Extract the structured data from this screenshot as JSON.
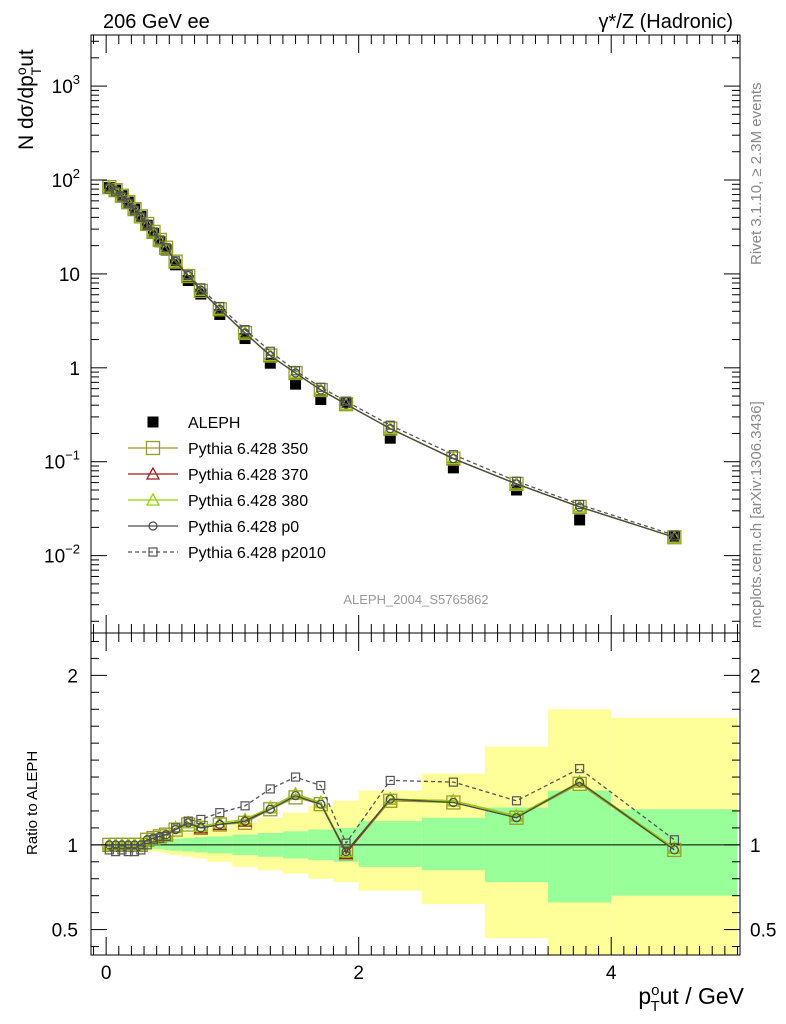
{
  "header": {
    "left_title": "206 GeV ee",
    "right_title": "γ*/Z (Hadronic)"
  },
  "side_text": {
    "rivet": "Rivet 3.1.10, ≥ 2.3M events",
    "mcplots": "mcplots.cern.ch [arXiv:1306.3436]"
  },
  "watermark": "ALEPH_2004_S5765862",
  "axes": {
    "main_ylabel": "N dσ/dp_T^out",
    "ratio_ylabel": "Ratio to ALEPH",
    "xlabel": "p_T^out / GeV",
    "main_yticks": [
      "10^-2",
      "10^-1",
      "1",
      "10",
      "10^2",
      "10^3"
    ],
    "ratio_yticks": [
      "0.5",
      "1",
      "2"
    ],
    "xticks": [
      "0",
      "2",
      "4"
    ]
  },
  "legend": [
    {
      "label": "ALEPH",
      "marker": "filled-square",
      "color": "#000000",
      "dashed": false
    },
    {
      "label": "Pythia 6.428 350",
      "marker": "open-square",
      "color": "#9a9a2a",
      "dashed": false
    },
    {
      "label": "Pythia 6.428 370",
      "marker": "open-triangle",
      "color": "#9a1b1b",
      "dashed": false
    },
    {
      "label": "Pythia 6.428 380",
      "marker": "open-triangle",
      "color": "#8fd400",
      "dashed": false
    },
    {
      "label": "Pythia 6.428 p0",
      "marker": "open-circle",
      "color": "#4a4a4a",
      "dashed": false
    },
    {
      "label": "Pythia 6.428 p2010",
      "marker": "open-square-small",
      "color": "#555555",
      "dashed": true
    }
  ],
  "chart_data": [
    {
      "type": "scatter",
      "panel": "main",
      "yscale": "log",
      "xlim": [
        -0.12,
        5.02
      ],
      "ylim": [
        0.0015,
        3500
      ],
      "x": [
        0.025,
        0.075,
        0.125,
        0.175,
        0.225,
        0.275,
        0.325,
        0.375,
        0.425,
        0.475,
        0.55,
        0.65,
        0.75,
        0.9,
        1.1,
        1.3,
        1.5,
        1.7,
        1.9,
        2.25,
        2.75,
        3.25,
        3.75,
        4.5
      ],
      "series": [
        {
          "name": "ALEPH",
          "values": [
            83,
            78,
            68,
            58,
            49,
            41,
            33,
            27,
            22,
            18,
            12.5,
            8.5,
            6.1,
            3.7,
            2.05,
            1.12,
            0.67,
            0.46,
            0.43,
            0.178,
            0.086,
            0.05,
            0.024,
            0.016
          ]
        },
        {
          "name": "Pythia 6.428 350",
          "values": [
            84,
            78,
            68,
            58,
            49,
            41,
            34,
            28,
            23,
            19,
            13.5,
            9.5,
            6.6,
            4.2,
            2.35,
            1.35,
            0.88,
            0.58,
            0.41,
            0.225,
            0.108,
            0.058,
            0.033,
            0.0157
          ]
        },
        {
          "name": "Pythia 6.428 370",
          "values": [
            84,
            78,
            68,
            58,
            49,
            41,
            34,
            28,
            23,
            19,
            13.5,
            9.6,
            6.7,
            4.2,
            2.35,
            1.35,
            0.88,
            0.58,
            0.41,
            0.225,
            0.108,
            0.058,
            0.033,
            0.0157
          ]
        },
        {
          "name": "Pythia 6.428 380",
          "values": [
            84,
            78,
            68,
            58,
            49,
            41,
            34,
            28,
            23,
            19,
            13.5,
            9.6,
            6.7,
            4.2,
            2.35,
            1.35,
            0.88,
            0.58,
            0.41,
            0.225,
            0.108,
            0.058,
            0.033,
            0.0157
          ]
        },
        {
          "name": "Pythia 6.428 p0",
          "values": [
            84,
            78,
            68,
            58,
            49,
            41,
            34,
            28,
            23,
            19,
            13.5,
            9.6,
            6.7,
            4.2,
            2.35,
            1.35,
            0.88,
            0.58,
            0.41,
            0.225,
            0.108,
            0.058,
            0.033,
            0.0157
          ]
        },
        {
          "name": "Pythia 6.428 p2010",
          "values": [
            80,
            75,
            66,
            56,
            47,
            40,
            33,
            28,
            23,
            19,
            13.8,
            9.8,
            7.1,
            4.5,
            2.55,
            1.5,
            0.93,
            0.62,
            0.44,
            0.245,
            0.119,
            0.062,
            0.035,
            0.0165
          ]
        }
      ]
    },
    {
      "type": "line",
      "panel": "ratio",
      "yscale": "linear",
      "xlim": [
        -0.12,
        5.02
      ],
      "ylim": [
        0.35,
        2.25
      ],
      "bands": {
        "edges": [
          0.0,
          0.05,
          0.1,
          0.15,
          0.2,
          0.25,
          0.3,
          0.35,
          0.4,
          0.45,
          0.5,
          0.6,
          0.7,
          0.8,
          1.0,
          1.2,
          1.4,
          1.6,
          1.8,
          2.0,
          2.5,
          3.0,
          3.5,
          4.0,
          5.0
        ],
        "green_lo": [
          0.99,
          0.99,
          0.99,
          0.985,
          0.985,
          0.98,
          0.98,
          0.975,
          0.975,
          0.97,
          0.965,
          0.96,
          0.955,
          0.95,
          0.94,
          0.93,
          0.92,
          0.91,
          0.9,
          0.87,
          0.85,
          0.78,
          0.66,
          0.7
        ],
        "green_hi": [
          1.01,
          1.01,
          1.01,
          1.015,
          1.015,
          1.02,
          1.02,
          1.025,
          1.025,
          1.03,
          1.035,
          1.04,
          1.045,
          1.05,
          1.06,
          1.07,
          1.08,
          1.09,
          1.1,
          1.14,
          1.16,
          1.22,
          1.32,
          1.21
        ],
        "yellow_lo": [
          0.99,
          0.99,
          0.985,
          0.98,
          0.975,
          0.97,
          0.965,
          0.96,
          0.955,
          0.95,
          0.94,
          0.93,
          0.92,
          0.9,
          0.87,
          0.85,
          0.83,
          0.8,
          0.78,
          0.73,
          0.65,
          0.45,
          0.27,
          0.32
        ],
        "yellow_hi": [
          1.01,
          1.01,
          1.015,
          1.02,
          1.025,
          1.03,
          1.035,
          1.04,
          1.045,
          1.05,
          1.06,
          1.07,
          1.08,
          1.1,
          1.13,
          1.16,
          1.19,
          1.23,
          1.26,
          1.32,
          1.42,
          1.58,
          1.8,
          1.75
        ]
      },
      "x": [
        0.025,
        0.075,
        0.125,
        0.175,
        0.225,
        0.275,
        0.325,
        0.375,
        0.425,
        0.475,
        0.55,
        0.65,
        0.75,
        0.9,
        1.1,
        1.3,
        1.5,
        1.7,
        1.9,
        2.25,
        2.75,
        3.25,
        3.75,
        4.5
      ],
      "series": [
        {
          "name": "Pythia 6.428 350",
          "values": [
            1.0,
            1.0,
            1.0,
            1.0,
            1.0,
            1.0,
            1.03,
            1.04,
            1.05,
            1.06,
            1.09,
            1.12,
            1.1,
            1.12,
            1.13,
            1.21,
            1.28,
            1.24,
            0.95,
            1.26,
            1.25,
            1.16,
            1.36,
            0.97
          ]
        },
        {
          "name": "Pythia 6.428 370",
          "values": [
            1.0,
            1.0,
            1.0,
            1.0,
            1.0,
            1.0,
            1.03,
            1.04,
            1.05,
            1.06,
            1.1,
            1.13,
            1.1,
            1.12,
            1.14,
            1.22,
            1.3,
            1.25,
            0.95,
            1.27,
            1.26,
            1.17,
            1.37,
            0.98
          ]
        },
        {
          "name": "Pythia 6.428 380",
          "values": [
            1.0,
            1.0,
            1.0,
            1.0,
            1.0,
            1.0,
            1.03,
            1.04,
            1.05,
            1.06,
            1.1,
            1.13,
            1.11,
            1.13,
            1.15,
            1.22,
            1.3,
            1.25,
            0.96,
            1.27,
            1.26,
            1.17,
            1.37,
            0.98
          ]
        },
        {
          "name": "Pythia 6.428 p0",
          "values": [
            1.0,
            1.0,
            1.0,
            1.0,
            1.0,
            1.0,
            1.03,
            1.04,
            1.05,
            1.06,
            1.09,
            1.13,
            1.1,
            1.12,
            1.14,
            1.21,
            1.29,
            1.24,
            0.96,
            1.27,
            1.25,
            1.16,
            1.37,
            0.97
          ]
        },
        {
          "name": "Pythia 6.428 p2010",
          "values": [
            0.97,
            0.96,
            0.97,
            0.96,
            0.96,
            0.97,
            1.0,
            1.03,
            1.04,
            1.05,
            1.1,
            1.14,
            1.15,
            1.19,
            1.23,
            1.33,
            1.4,
            1.35,
            1.01,
            1.38,
            1.37,
            1.26,
            1.45,
            1.03
          ]
        }
      ]
    }
  ]
}
